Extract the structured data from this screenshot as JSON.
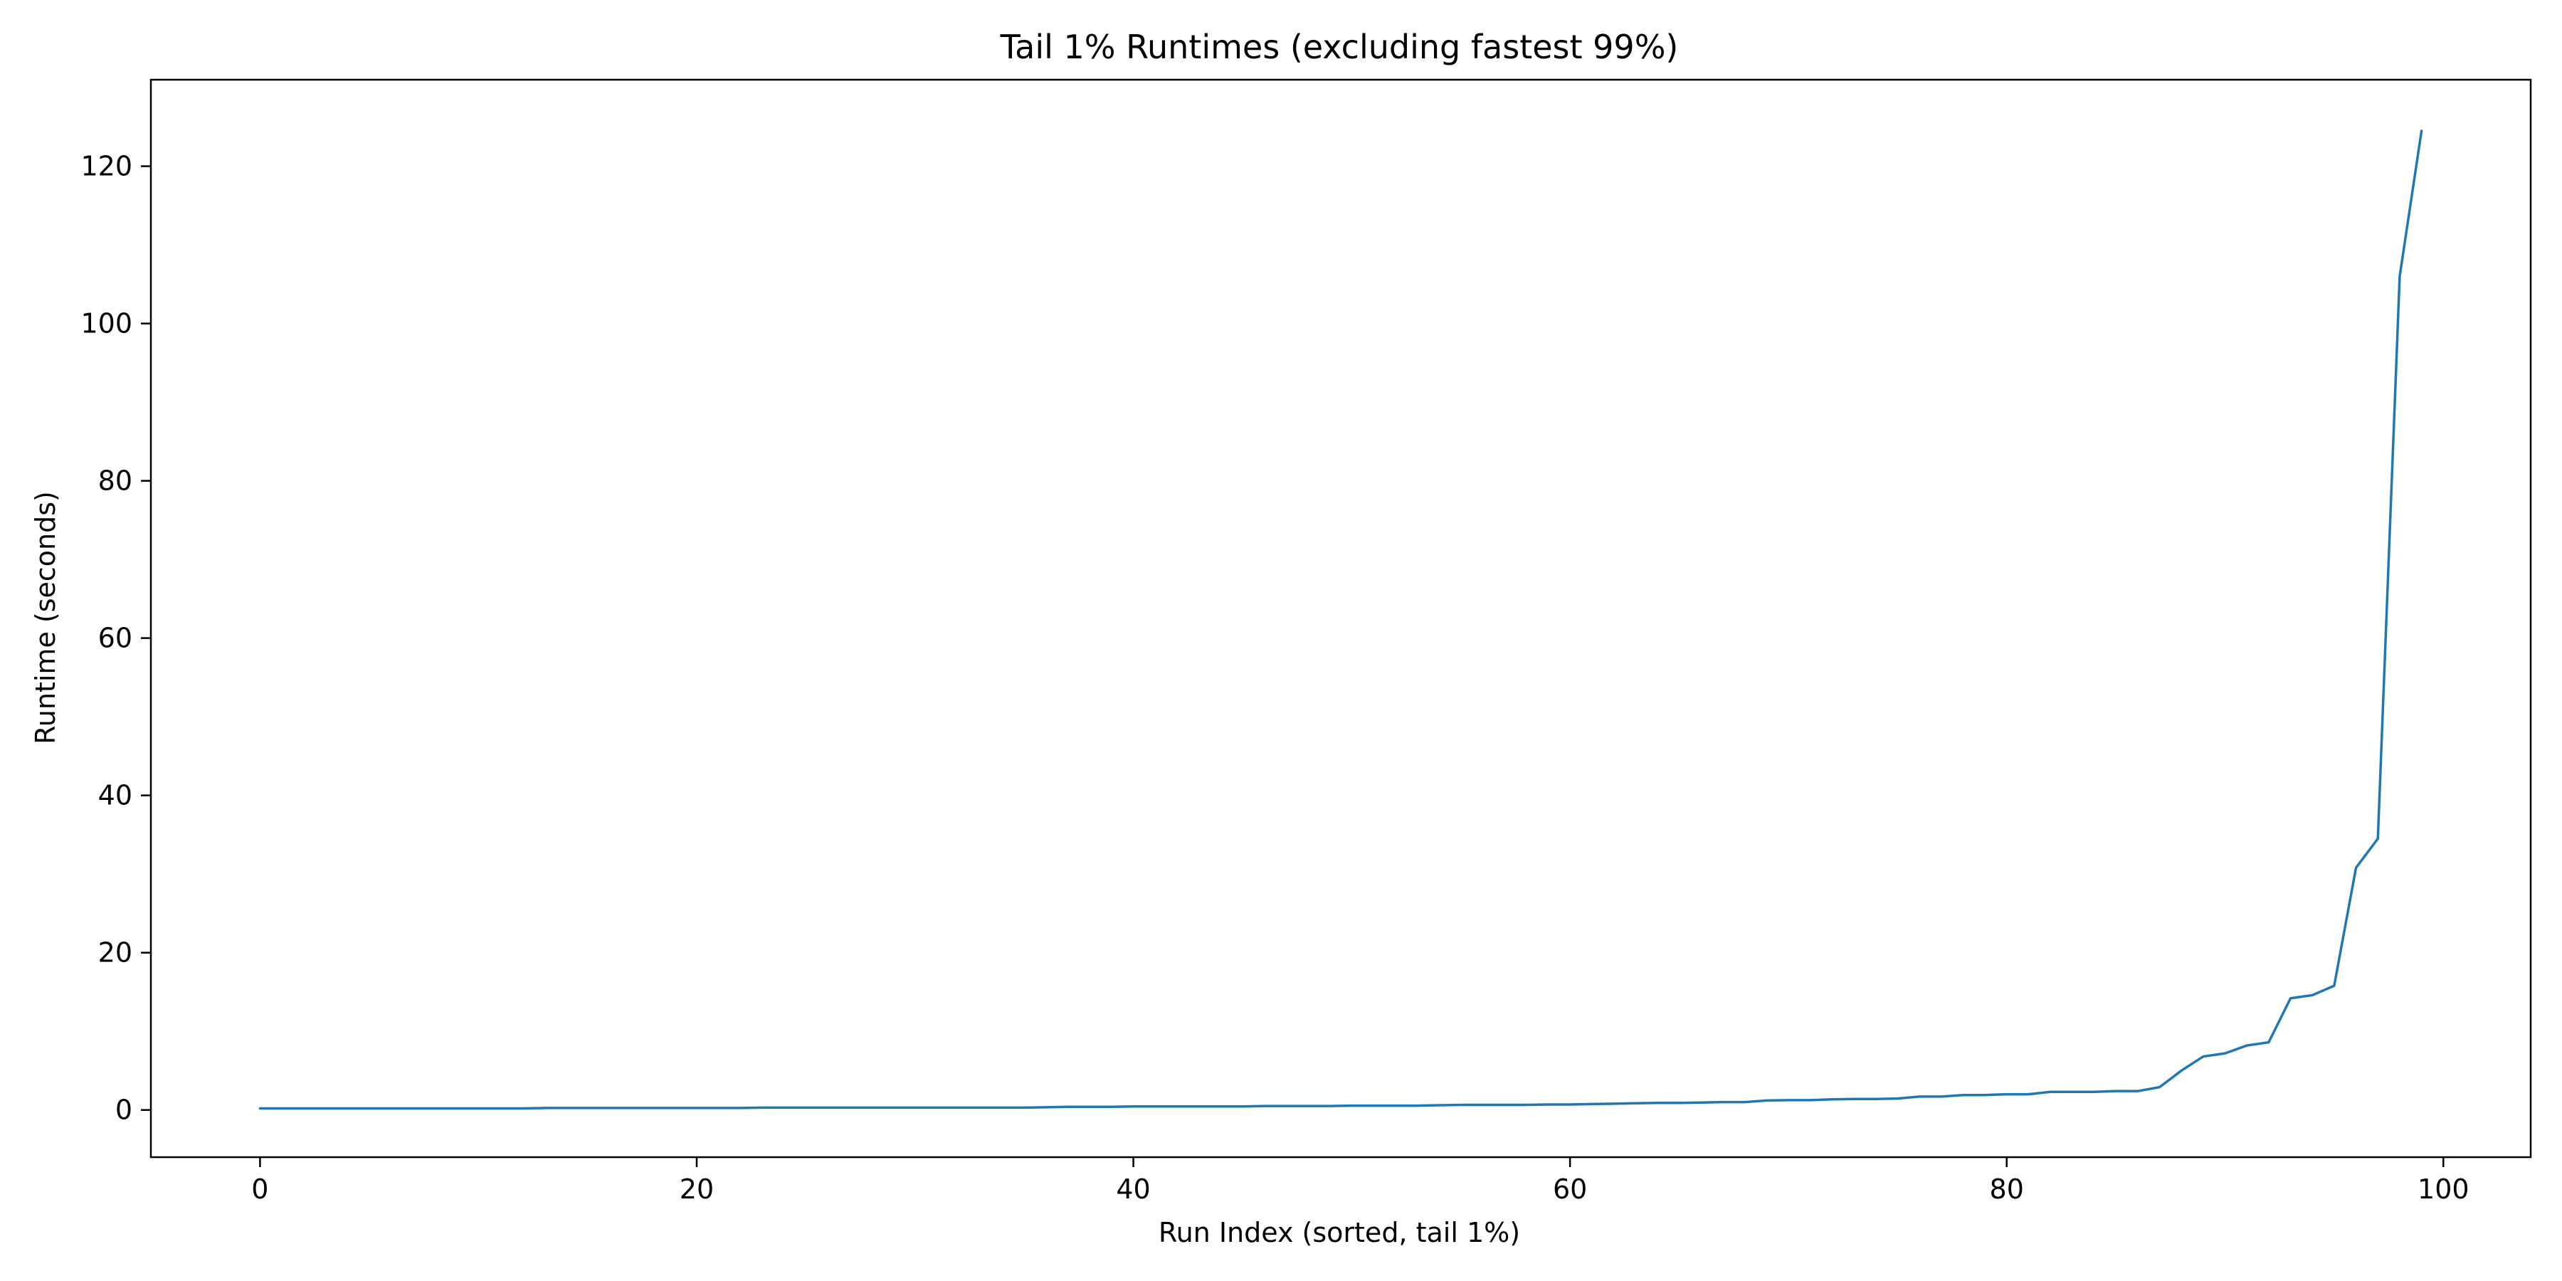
{
  "chart_data": {
    "type": "line",
    "title": "Tail 1% Runtimes (excluding fastest 99%)",
    "xlabel": "Run Index (sorted, tail 1%)",
    "ylabel": "Runtime (seconds)",
    "xlim": [
      -5,
      104
    ],
    "ylim": [
      -6,
      131
    ],
    "xticks": [
      0,
      20,
      40,
      60,
      80,
      100
    ],
    "yticks": [
      0,
      20,
      40,
      60,
      80,
      100,
      120
    ],
    "grid": false,
    "series": [
      {
        "name": "runtime",
        "color": "#1f77b4",
        "x": [
          0,
          1,
          2,
          3,
          4,
          5,
          6,
          7,
          8,
          9,
          10,
          11,
          12,
          13,
          14,
          15,
          16,
          17,
          18,
          19,
          20,
          21,
          22,
          23,
          24,
          25,
          26,
          27,
          28,
          29,
          30,
          31,
          32,
          33,
          34,
          35,
          36,
          37,
          38,
          39,
          40,
          41,
          42,
          43,
          44,
          45,
          46,
          47,
          48,
          49,
          50,
          51,
          52,
          53,
          54,
          55,
          56,
          57,
          58,
          59,
          60,
          61,
          62,
          63,
          64,
          65,
          66,
          67,
          68,
          69,
          70,
          71,
          72,
          73,
          74,
          75,
          76,
          77,
          78,
          79,
          80,
          81,
          82,
          83,
          84,
          85,
          86,
          87,
          88,
          89,
          90,
          91,
          92,
          93,
          94,
          95,
          96,
          97,
          98,
          99
        ],
        "values": [
          0.2,
          0.2,
          0.2,
          0.2,
          0.2,
          0.2,
          0.2,
          0.2,
          0.2,
          0.2,
          0.2,
          0.2,
          0.2,
          0.25,
          0.25,
          0.25,
          0.25,
          0.25,
          0.25,
          0.25,
          0.25,
          0.25,
          0.25,
          0.3,
          0.3,
          0.3,
          0.3,
          0.3,
          0.3,
          0.3,
          0.3,
          0.3,
          0.3,
          0.3,
          0.3,
          0.3,
          0.35,
          0.4,
          0.4,
          0.4,
          0.45,
          0.45,
          0.45,
          0.45,
          0.45,
          0.45,
          0.5,
          0.5,
          0.5,
          0.5,
          0.55,
          0.55,
          0.55,
          0.55,
          0.6,
          0.65,
          0.65,
          0.65,
          0.65,
          0.7,
          0.7,
          0.75,
          0.8,
          0.85,
          0.9,
          0.9,
          0.95,
          1.0,
          1.0,
          1.2,
          1.25,
          1.25,
          1.35,
          1.4,
          1.4,
          1.45,
          1.7,
          1.7,
          1.9,
          1.9,
          2.0,
          2.0,
          2.3,
          2.3,
          2.3,
          2.4,
          2.4,
          2.9,
          5.0,
          6.8,
          7.2,
          8.2,
          8.6,
          14.2,
          14.6,
          15.8,
          30.8,
          34.5,
          106.0,
          124.5
        ]
      }
    ]
  }
}
